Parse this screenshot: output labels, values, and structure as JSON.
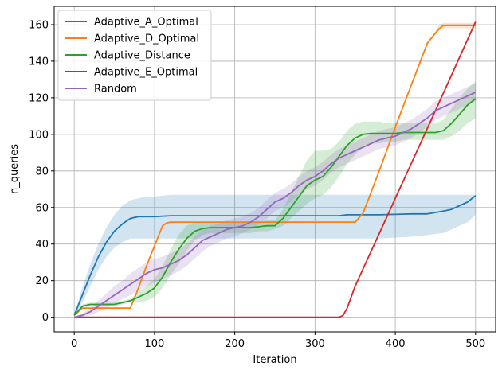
{
  "chart_data": {
    "type": "line",
    "title": "",
    "xlabel": "Iteration",
    "ylabel": "n_queries",
    "xlim": [
      -25,
      525
    ],
    "ylim": [
      -8,
      170
    ],
    "xticks": [
      0,
      100,
      200,
      300,
      400,
      500
    ],
    "yticks": [
      0,
      20,
      40,
      60,
      80,
      100,
      120,
      140,
      160
    ],
    "grid": true,
    "legend": "top-left",
    "series": [
      {
        "name": "Adaptive_A_Optimal",
        "color": "#1f77b4",
        "x": [
          0,
          10,
          20,
          30,
          40,
          50,
          60,
          70,
          80,
          90,
          100,
          120,
          150,
          200,
          250,
          300,
          330,
          340,
          350,
          380,
          420,
          440,
          460,
          470,
          480,
          490,
          500
        ],
        "y": [
          1,
          12,
          23,
          33,
          41,
          47,
          51,
          54,
          55,
          55,
          55,
          55.5,
          55.5,
          55.5,
          55.5,
          55.5,
          55.5,
          56,
          56,
          56,
          56.5,
          56.5,
          58,
          59,
          61,
          63,
          66.5
        ],
        "lower": [
          0.5,
          8,
          17,
          26,
          33,
          38,
          41,
          43,
          43,
          43,
          43,
          43,
          43,
          43,
          43,
          43,
          43,
          43,
          43,
          43,
          44,
          45,
          46,
          48,
          50,
          52,
          56
        ],
        "upper": [
          1.5,
          16,
          29,
          40,
          49,
          56,
          61,
          64,
          65,
          66,
          66,
          67,
          67,
          67,
          67,
          67,
          67,
          67,
          67,
          67,
          67,
          67,
          67,
          67,
          67,
          67,
          67
        ]
      },
      {
        "name": "Adaptive_D_Optimal",
        "color": "#ff7f0e",
        "x": [
          0,
          5,
          10,
          20,
          30,
          40,
          50,
          60,
          70,
          80,
          90,
          100,
          110,
          115,
          120,
          150,
          200,
          250,
          300,
          340,
          350,
          360,
          380,
          400,
          420,
          440,
          455,
          460,
          470,
          480,
          490,
          500
        ],
        "y": [
          1,
          3,
          5,
          5,
          5,
          5,
          5,
          5,
          5,
          16,
          28,
          39,
          50,
          51.5,
          52,
          52,
          52,
          52,
          52,
          52,
          52,
          57,
          80,
          104,
          127,
          150,
          158,
          159.5,
          159.5,
          159.5,
          159.5,
          159.5
        ],
        "lower": [
          1,
          3,
          5,
          5,
          5,
          5,
          5,
          5,
          5,
          16,
          28,
          39,
          50,
          51.5,
          52,
          52,
          52,
          52,
          52,
          52,
          52,
          57,
          80,
          104,
          127,
          150,
          157,
          158,
          158,
          158,
          158,
          158
        ],
        "upper": [
          1,
          3,
          5,
          5,
          5,
          5,
          5,
          5,
          5,
          16,
          28,
          39,
          50,
          51.5,
          52,
          52,
          52,
          52,
          52,
          52,
          52,
          57,
          80,
          104,
          127,
          150,
          160,
          161,
          161,
          161,
          161,
          161
        ]
      },
      {
        "name": "Adaptive_Distance",
        "color": "#2ca02c",
        "x": [
          0,
          10,
          20,
          30,
          40,
          50,
          60,
          70,
          80,
          90,
          100,
          110,
          120,
          130,
          140,
          150,
          160,
          170,
          180,
          190,
          200,
          210,
          220,
          230,
          240,
          250,
          260,
          270,
          280,
          290,
          300,
          310,
          320,
          330,
          340,
          350,
          360,
          370,
          380,
          390,
          400,
          410,
          420,
          430,
          440,
          450,
          460,
          470,
          480,
          490,
          500
        ],
        "y": [
          1,
          6,
          7,
          7,
          7,
          7,
          8,
          9,
          11,
          13,
          16,
          22,
          30,
          37,
          43,
          47,
          48.5,
          49,
          49,
          49,
          49,
          49,
          49,
          49.5,
          50,
          50,
          54,
          60,
          66,
          72,
          75,
          77,
          82,
          88,
          94,
          98,
          100,
          100.5,
          100.5,
          100.5,
          100.5,
          101,
          101,
          101,
          101,
          101,
          102,
          106,
          111,
          116,
          119.5
        ],
        "lower": [
          0.5,
          5,
          6,
          6,
          6,
          6,
          7,
          8,
          8,
          9,
          11,
          16,
          23,
          29,
          36,
          42,
          45,
          46,
          46,
          46,
          46,
          46,
          46,
          47,
          47,
          48,
          50,
          54,
          58,
          62,
          65,
          67,
          71,
          77,
          84,
          89,
          94,
          95,
          95,
          96,
          96,
          97,
          97,
          97,
          97,
          97,
          97,
          99,
          102,
          106,
          109
        ],
        "upper": [
          1.5,
          7,
          8,
          8,
          8,
          8,
          9,
          10,
          14,
          17,
          21,
          28,
          37,
          45,
          50,
          52,
          52,
          52,
          52,
          52,
          52,
          52,
          52,
          52,
          53,
          53,
          59,
          68,
          77,
          86,
          91,
          91,
          92,
          96,
          102,
          106,
          107,
          107,
          107,
          106,
          106,
          106,
          106,
          106,
          106,
          106,
          108,
          114,
          120,
          125,
          129
        ]
      },
      {
        "name": "Adaptive_E_Optimal",
        "color": "#d62728",
        "x": [
          0,
          100,
          200,
          300,
          330,
          335,
          340,
          350,
          400,
          450,
          500
        ],
        "y": [
          0,
          0,
          0,
          0,
          0,
          1,
          5,
          17,
          65,
          113,
          161.5
        ],
        "lower": [
          0,
          0,
          0,
          0,
          0,
          1,
          5,
          17,
          65,
          113,
          161.5
        ],
        "upper": [
          0,
          0,
          0,
          0,
          0,
          1,
          5,
          17,
          65,
          113,
          161.5
        ]
      },
      {
        "name": "Random",
        "color": "#9467bd",
        "x": [
          0,
          10,
          20,
          30,
          40,
          50,
          60,
          70,
          80,
          90,
          100,
          110,
          120,
          130,
          140,
          150,
          160,
          170,
          180,
          190,
          200,
          210,
          220,
          230,
          240,
          250,
          260,
          270,
          280,
          290,
          300,
          310,
          320,
          330,
          340,
          350,
          360,
          370,
          380,
          390,
          400,
          410,
          420,
          430,
          440,
          450,
          460,
          470,
          480,
          490,
          500
        ],
        "y": [
          0,
          1,
          3,
          6,
          9,
          12,
          15,
          18,
          21,
          24,
          26,
          27,
          29,
          31,
          34,
          38,
          42,
          44,
          46,
          48,
          49,
          50,
          52,
          55,
          59,
          63,
          65,
          68,
          72,
          75,
          77,
          80,
          84,
          87,
          89,
          91,
          93,
          95,
          97,
          98,
          99,
          101,
          103,
          106,
          109,
          113,
          115,
          117,
          119,
          121,
          123
        ],
        "lower": [
          0,
          0,
          1,
          3,
          5,
          7,
          10,
          12,
          15,
          17,
          19,
          21,
          23,
          25,
          28,
          32,
          36,
          39,
          41,
          43,
          44,
          46,
          48,
          51,
          54,
          58,
          60,
          63,
          67,
          70,
          72,
          75,
          79,
          82,
          84,
          86,
          88,
          90,
          92,
          93,
          94,
          96,
          98,
          101,
          104,
          108,
          110,
          112,
          114,
          116,
          118
        ],
        "upper": [
          0,
          2,
          5,
          9,
          13,
          17,
          20,
          24,
          27,
          30,
          32,
          33,
          35,
          37,
          40,
          44,
          48,
          50,
          51,
          53,
          54,
          55,
          57,
          60,
          64,
          68,
          70,
          73,
          77,
          80,
          82,
          85,
          89,
          92,
          94,
          96,
          98,
          100,
          102,
          103,
          104,
          106,
          108,
          111,
          114,
          118,
          120,
          122,
          124,
          126,
          128
        ]
      }
    ]
  }
}
